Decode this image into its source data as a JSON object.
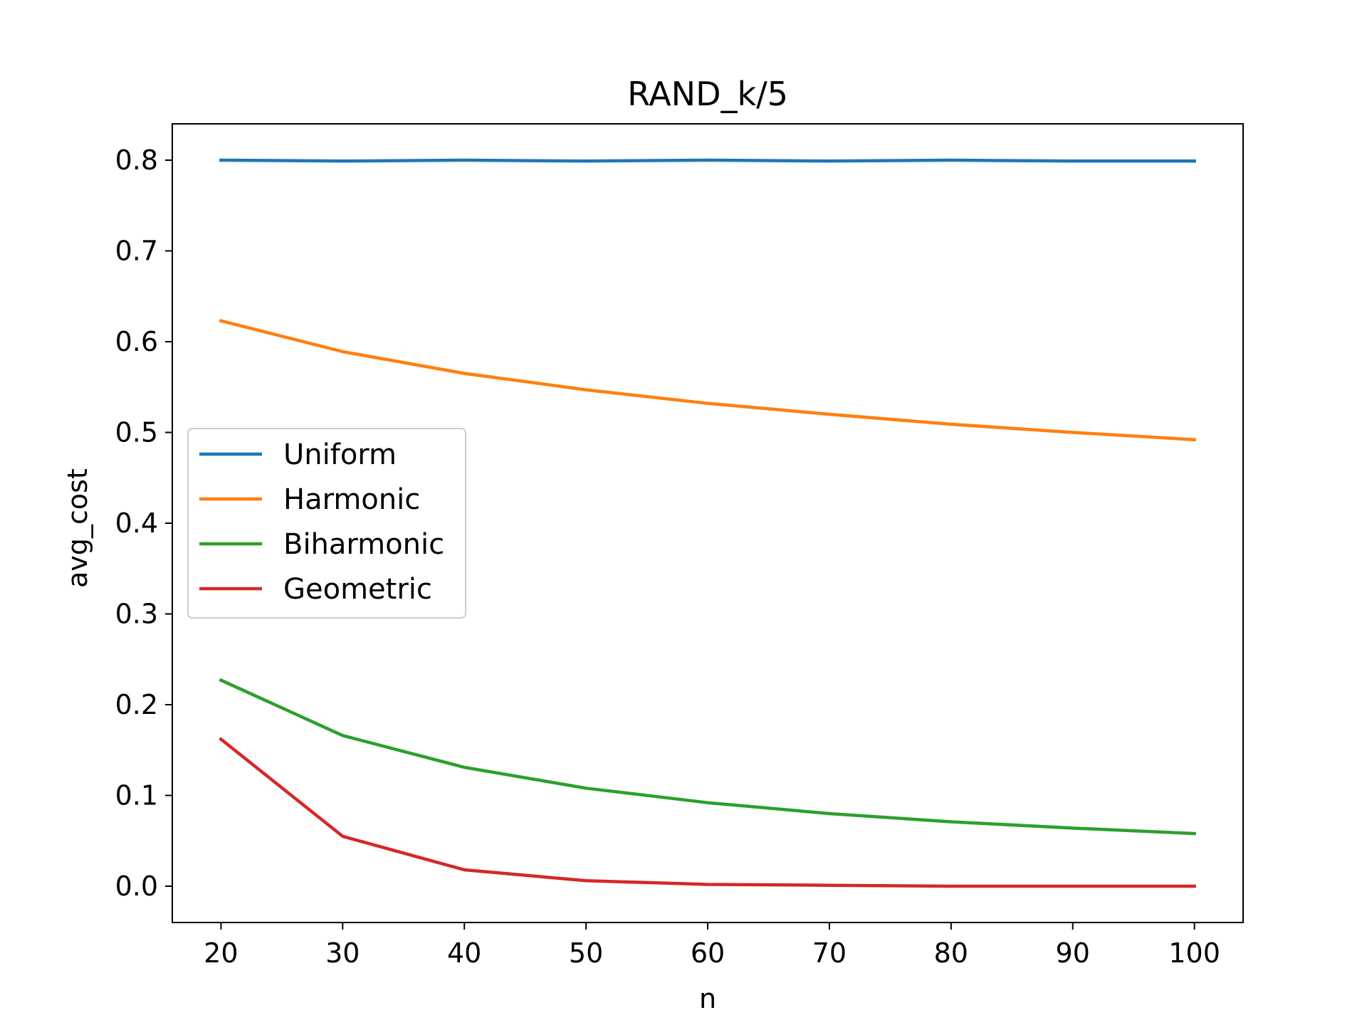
{
  "chart_data": {
    "type": "line",
    "title": "RAND_k/5",
    "xlabel": "n",
    "ylabel": "avg_cost",
    "x": [
      20,
      30,
      40,
      50,
      60,
      70,
      80,
      90,
      100
    ],
    "xticks": [
      "20",
      "30",
      "40",
      "50",
      "60",
      "70",
      "80",
      "90",
      "100"
    ],
    "yticks": [
      "0.0",
      "0.1",
      "0.2",
      "0.3",
      "0.4",
      "0.5",
      "0.6",
      "0.7",
      "0.8"
    ],
    "xlim": [
      16,
      104
    ],
    "ylim": [
      -0.04,
      0.84
    ],
    "grid": false,
    "legend_position": "center-left",
    "series": [
      {
        "name": "Uniform",
        "color": "#1f77b4",
        "values": [
          0.8,
          0.799,
          0.8,
          0.799,
          0.8,
          0.799,
          0.8,
          0.799,
          0.799
        ]
      },
      {
        "name": "Harmonic",
        "color": "#ff7f0e",
        "values": [
          0.623,
          0.589,
          0.565,
          0.547,
          0.532,
          0.52,
          0.509,
          0.5,
          0.492
        ]
      },
      {
        "name": "Biharmonic",
        "color": "#2ca02c",
        "values": [
          0.227,
          0.166,
          0.131,
          0.108,
          0.092,
          0.08,
          0.071,
          0.064,
          0.058
        ]
      },
      {
        "name": "Geometric",
        "color": "#d62728",
        "values": [
          0.162,
          0.055,
          0.018,
          0.006,
          0.002,
          0.001,
          0.0,
          0.0,
          0.0
        ]
      }
    ]
  }
}
